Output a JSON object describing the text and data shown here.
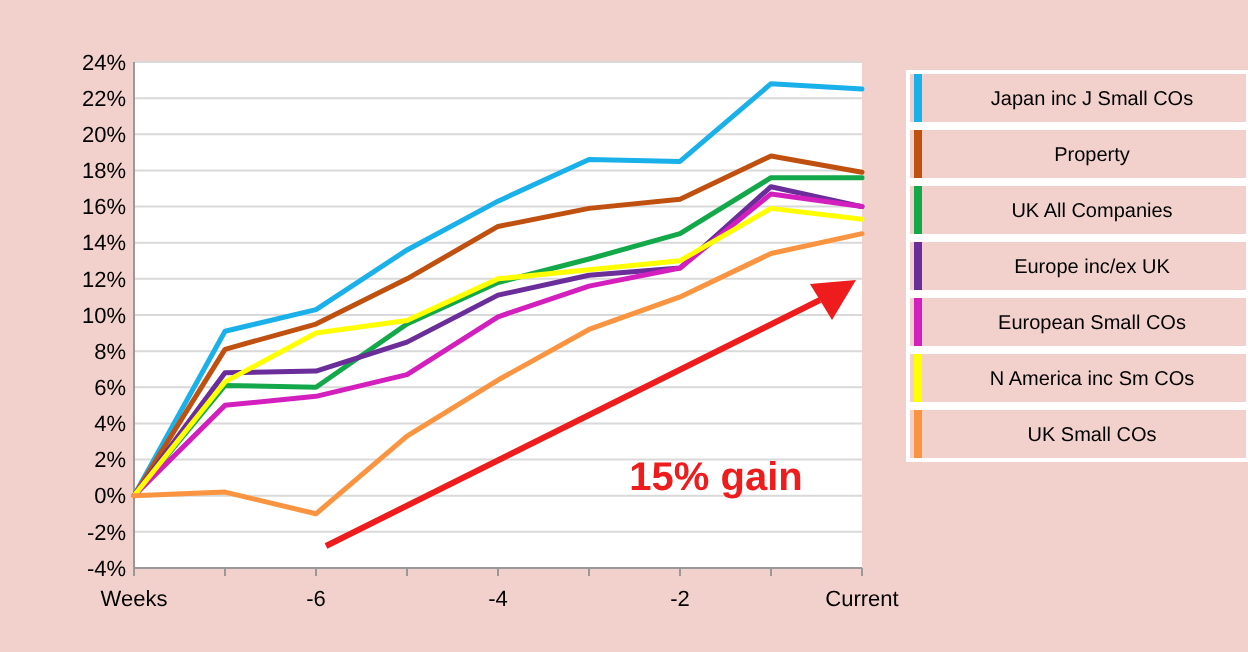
{
  "chart_data": {
    "type": "line",
    "categories": [
      "Weeks",
      null,
      "-6",
      null,
      "-4",
      null,
      "-2",
      null,
      "Current"
    ],
    "series": [
      {
        "name": "Japan inc J Small COs",
        "color": "#1ab0ea",
        "values": [
          0,
          9.1,
          10.3,
          13.6,
          16.3,
          18.6,
          18.5,
          22.8,
          22.5
        ]
      },
      {
        "name": "Property",
        "color": "#c0500f",
        "values": [
          0,
          8.1,
          9.5,
          12,
          14.9,
          15.9,
          16.4,
          18.8,
          17.9
        ]
      },
      {
        "name": "UK All Companies",
        "color": "#13a84a",
        "values": [
          0,
          6.1,
          6.0,
          9.5,
          11.8,
          13.1,
          14.5,
          17.6,
          17.6
        ]
      },
      {
        "name": "Europe inc/ex UK",
        "color": "#6a2d9a",
        "values": [
          0,
          6.8,
          6.9,
          8.5,
          11.1,
          12.2,
          12.6,
          17.1,
          16.0
        ]
      },
      {
        "name": "European Small COs",
        "color": "#d41fbf",
        "values": [
          0,
          5.0,
          5.5,
          6.7,
          9.9,
          11.6,
          12.6,
          16.7,
          16.0
        ]
      },
      {
        "name": "N America inc Sm COs",
        "color": "#ffff00",
        "values": [
          0,
          6.3,
          9.0,
          9.7,
          12.0,
          12.5,
          13.0,
          15.9,
          15.3
        ]
      },
      {
        "name": "UK Small COs",
        "color": "#fb9440",
        "values": [
          0,
          0.2,
          -1.0,
          3.3,
          6.4,
          9.2,
          11.0,
          13.4,
          14.5
        ]
      }
    ],
    "ylim": [
      -4,
      24
    ],
    "yticks": [
      {
        "value": -4,
        "label": "-4%"
      },
      {
        "value": -2,
        "label": "-2%"
      },
      {
        "value": 0,
        "label": "0%"
      },
      {
        "value": 2,
        "label": "2%"
      },
      {
        "value": 4,
        "label": "4%"
      },
      {
        "value": 6,
        "label": "6%"
      },
      {
        "value": 8,
        "label": "8%"
      },
      {
        "value": 10,
        "label": "10%"
      },
      {
        "value": 12,
        "label": "12%"
      },
      {
        "value": 14,
        "label": "14%"
      },
      {
        "value": 16,
        "label": "16%"
      },
      {
        "value": 18,
        "label": "18%"
      },
      {
        "value": 20,
        "label": "20%"
      },
      {
        "value": 22,
        "label": "22%"
      },
      {
        "value": 24,
        "label": "24%"
      }
    ],
    "grid": "y",
    "legend": "right",
    "marker": "none",
    "line_style": "solid",
    "annotations": [
      "15% gain"
    ]
  }
}
